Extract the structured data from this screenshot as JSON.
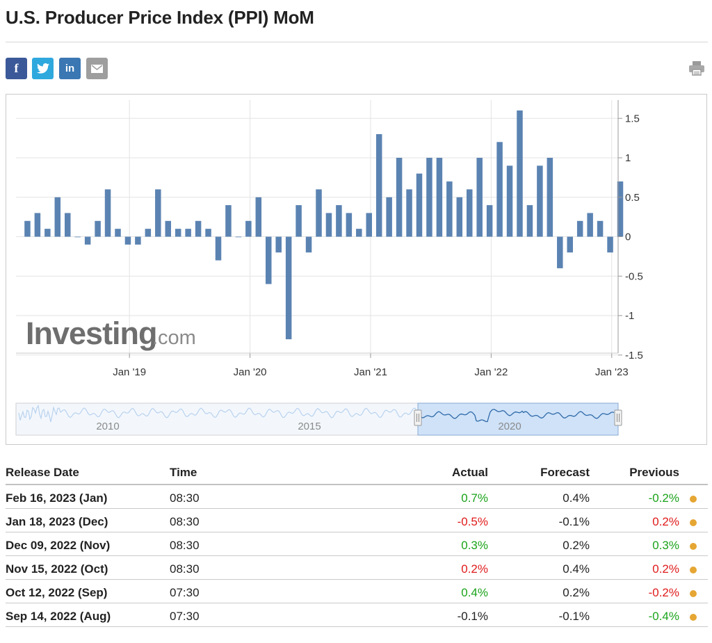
{
  "page": {
    "title": "U.S. Producer Price Index (PPI) MoM"
  },
  "share": {
    "facebook_glyph": "f",
    "linkedin_glyph": "in",
    "icons": [
      "facebook-icon",
      "twitter-icon",
      "linkedin-icon",
      "email-icon",
      "printer-icon"
    ]
  },
  "colors": {
    "bar": "#5b83b2",
    "positive": "#1aa31a",
    "negative": "#e01b1b",
    "status_dot": "#e6a633",
    "navigator_fill": "#cfe2f8"
  },
  "chart_data": {
    "type": "bar",
    "watermark": {
      "brand": "Investing",
      "suffix": ".com"
    },
    "x_tick_labels": [
      "Jan '19",
      "Jan '20",
      "Jan '21",
      "Jan '22",
      "Jan '23"
    ],
    "y_ticks": [
      1.5,
      1,
      0.5,
      0,
      -0.5,
      -1,
      -1.5
    ],
    "ylim": [
      -1.5,
      1.75
    ],
    "y_axis_position": "right",
    "grid": true,
    "series": [
      {
        "x": [
          "2018-02",
          "2018-03",
          "2018-04",
          "2018-05",
          "2018-06",
          "2018-07",
          "2018-08",
          "2018-09",
          "2018-10",
          "2018-11",
          "2018-12",
          "2019-01",
          "2019-02",
          "2019-03",
          "2019-04",
          "2019-05",
          "2019-06",
          "2019-07",
          "2019-08",
          "2019-09",
          "2019-10",
          "2019-11",
          "2019-12",
          "2020-01",
          "2020-02",
          "2020-03",
          "2020-04",
          "2020-05",
          "2020-06",
          "2020-07",
          "2020-08",
          "2020-09",
          "2020-10",
          "2020-11",
          "2020-12",
          "2021-01",
          "2021-02",
          "2021-03",
          "2021-04",
          "2021-05",
          "2021-06",
          "2021-07",
          "2021-08",
          "2021-09",
          "2021-10",
          "2021-11",
          "2021-12",
          "2022-01",
          "2022-02",
          "2022-03",
          "2022-04",
          "2022-05",
          "2022-06",
          "2022-07",
          "2022-08",
          "2022-09",
          "2022-10",
          "2022-11",
          "2022-12",
          "2023-01"
        ],
        "values": [
          0.2,
          0.3,
          0.1,
          0.5,
          0.3,
          0.0,
          -0.1,
          0.2,
          0.6,
          0.1,
          -0.1,
          -0.1,
          0.1,
          0.6,
          0.2,
          0.1,
          0.1,
          0.2,
          0.1,
          -0.3,
          0.4,
          0.0,
          0.2,
          0.5,
          -0.6,
          -0.2,
          -1.3,
          0.4,
          -0.2,
          0.6,
          0.3,
          0.4,
          0.3,
          0.1,
          0.3,
          1.3,
          0.5,
          1.0,
          0.6,
          0.8,
          1.0,
          1.0,
          0.7,
          0.5,
          0.6,
          1.0,
          0.4,
          1.2,
          0.9,
          1.6,
          0.4,
          0.9,
          1.0,
          -0.4,
          -0.2,
          0.2,
          0.3,
          0.2,
          -0.2,
          0.7
        ]
      }
    ],
    "navigator": {
      "labels": [
        "2010",
        "2015",
        "2020"
      ]
    }
  },
  "table": {
    "headers": {
      "release_date": "Release Date",
      "time": "Time",
      "actual": "Actual",
      "forecast": "Forecast",
      "previous": "Previous"
    },
    "rows": [
      {
        "date": "Feb 16, 2023 (Jan)",
        "time": "08:30",
        "actual": "0.7%",
        "actual_status": "pos",
        "forecast": "0.4%",
        "previous": "-0.2%",
        "previous_status": "pos"
      },
      {
        "date": "Jan 18, 2023 (Dec)",
        "time": "08:30",
        "actual": "-0.5%",
        "actual_status": "neg",
        "forecast": "-0.1%",
        "previous": "0.2%",
        "previous_status": "neg"
      },
      {
        "date": "Dec 09, 2022 (Nov)",
        "time": "08:30",
        "actual": "0.3%",
        "actual_status": "pos",
        "forecast": "0.2%",
        "previous": "0.3%",
        "previous_status": "pos"
      },
      {
        "date": "Nov 15, 2022 (Oct)",
        "time": "08:30",
        "actual": "0.2%",
        "actual_status": "neg",
        "forecast": "0.4%",
        "previous": "0.2%",
        "previous_status": "neg"
      },
      {
        "date": "Oct 12, 2022 (Sep)",
        "time": "07:30",
        "actual": "0.4%",
        "actual_status": "pos",
        "forecast": "0.2%",
        "previous": "-0.2%",
        "previous_status": "neg"
      },
      {
        "date": "Sep 14, 2022 (Aug)",
        "time": "07:30",
        "actual": "-0.1%",
        "actual_status": "neu",
        "forecast": "-0.1%",
        "previous": "-0.4%",
        "previous_status": "pos"
      }
    ]
  }
}
